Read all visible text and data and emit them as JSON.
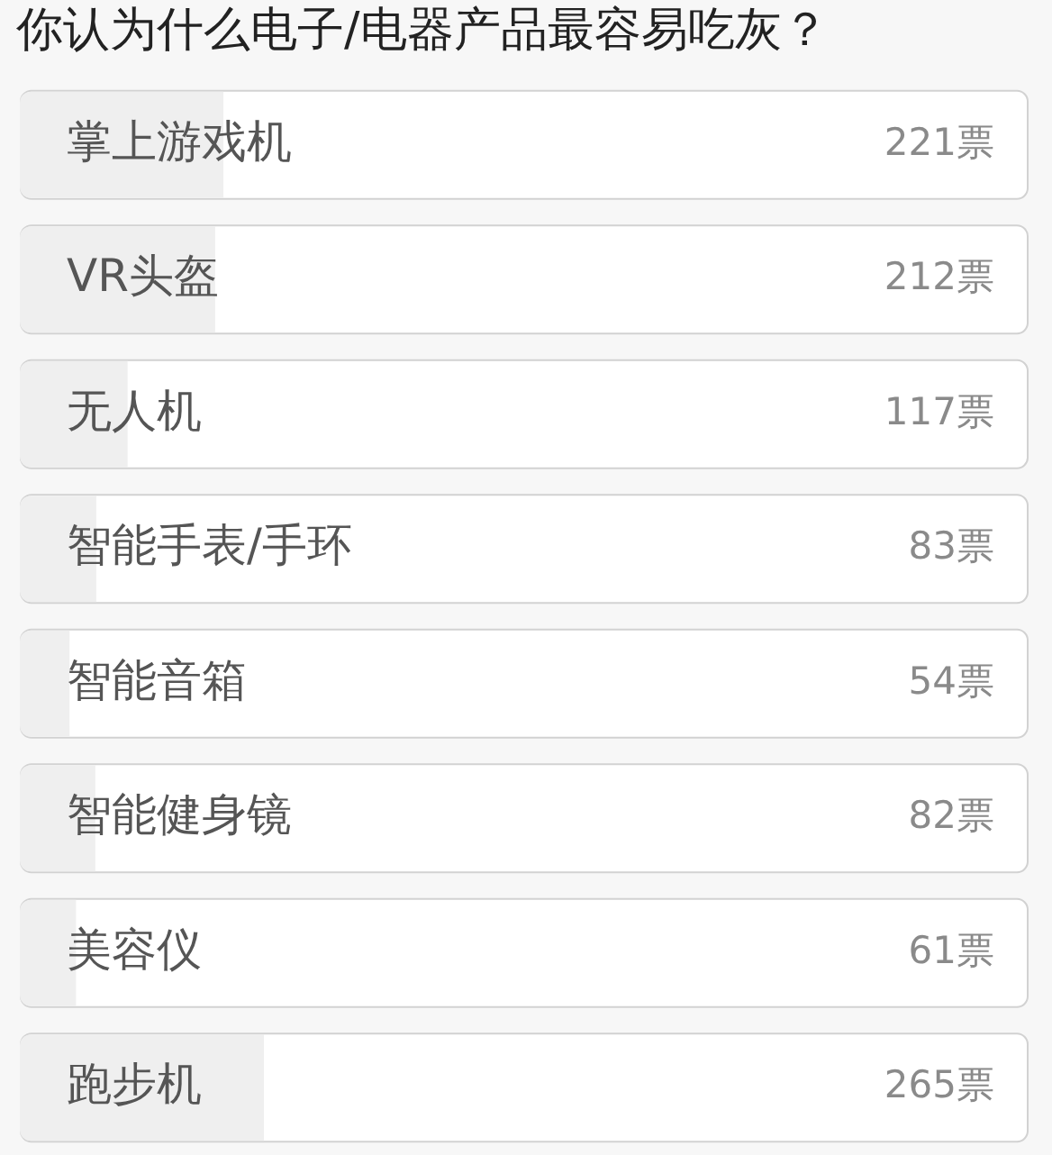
{
  "chart_data": {
    "type": "bar",
    "orientation": "horizontal",
    "title": "你认为什么电子/电器产品最容易吃灰？",
    "categories": [
      "掌上游戏机",
      "VR头盔",
      "无人机",
      "智能手表/手环",
      "智能音箱",
      "智能健身镜",
      "美容仪",
      "跑步机"
    ],
    "values": [
      221,
      212,
      117,
      83,
      54,
      82,
      61,
      265
    ],
    "value_labels": [
      "221票",
      "212票",
      "117票",
      "83票",
      "54票",
      "82票",
      "61票",
      "265票"
    ],
    "color": "#efefef",
    "xlim": [
      0,
      1095
    ],
    "tick_labels": "y"
  }
}
